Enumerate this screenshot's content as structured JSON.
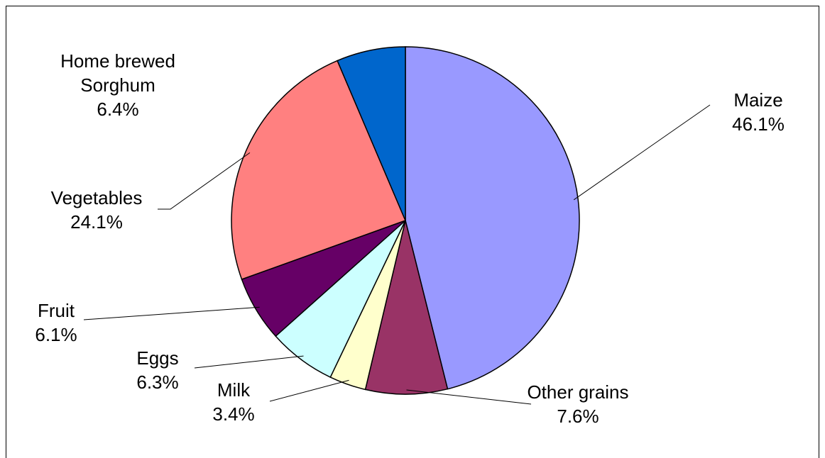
{
  "chart_data": {
    "type": "pie",
    "categories": [
      "Maize",
      "Other grains",
      "Milk",
      "Eggs",
      "Fruit",
      "Vegetables",
      "Home brewed Sorghum"
    ],
    "values": [
      46.1,
      7.6,
      3.4,
      6.3,
      6.1,
      24.1,
      6.4
    ],
    "value_labels": [
      "46.1%",
      "7.6%",
      "3.4%",
      "6.3%",
      "6.1%",
      "24.1%",
      "6.4%"
    ],
    "colors": [
      "#9999ff",
      "#993366",
      "#ffffcc",
      "#ccffff",
      "#660066",
      "#ff8080",
      "#0066cc"
    ]
  }
}
